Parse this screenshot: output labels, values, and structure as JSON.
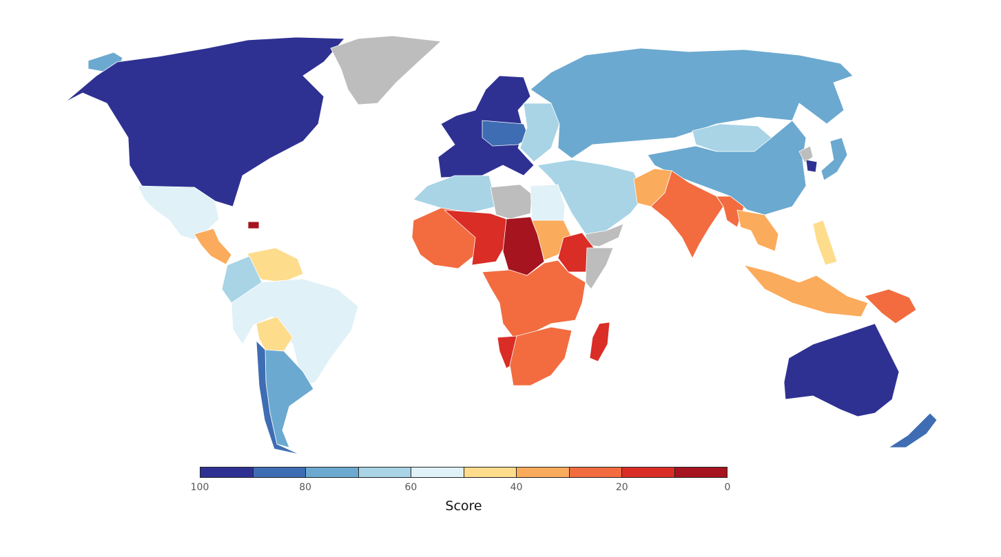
{
  "legend": {
    "title": "Score",
    "ticks": [
      "100",
      "80",
      "60",
      "40",
      "20",
      "0"
    ],
    "colors": [
      "#2e3192",
      "#3f6db3",
      "#6ba9d0",
      "#a8d4e6",
      "#e0f1f7",
      "#fddc8c",
      "#fbab5c",
      "#f26c40",
      "#d92d26",
      "#a5141f"
    ],
    "no_data_color": "#bdbdbd"
  },
  "regions": [
    {
      "name": "North America (USA, Canada)",
      "score_band": 0
    },
    {
      "name": "Alaska",
      "score_band": 2
    },
    {
      "name": "Greenland",
      "score_band": "no-data"
    },
    {
      "name": "Mexico",
      "score_band": 4
    },
    {
      "name": "Central America",
      "score_band": 6
    },
    {
      "name": "Haiti",
      "score_band": 9
    },
    {
      "name": "Northern South America",
      "score_band": 5
    },
    {
      "name": "Colombia / Ecuador",
      "score_band": 3
    },
    {
      "name": "Brazil / Peru",
      "score_band": 4
    },
    {
      "name": "Bolivia",
      "score_band": 5
    },
    {
      "name": "Argentina",
      "score_band": 2
    },
    {
      "name": "Chile",
      "score_band": 1
    },
    {
      "name": "Western Europe",
      "score_band": 0
    },
    {
      "name": "Central Europe",
      "score_band": 1
    },
    {
      "name": "Eastern Europe",
      "score_band": 3
    },
    {
      "name": "Russia",
      "score_band": 2
    },
    {
      "name": "China",
      "score_band": 2
    },
    {
      "name": "Mongolia",
      "score_band": 3
    },
    {
      "name": "Japan",
      "score_band": 2
    },
    {
      "name": "South Korea",
      "score_band": 0
    },
    {
      "name": "North Korea",
      "score_band": "no-data"
    },
    {
      "name": "Middle East",
      "score_band": 3
    },
    {
      "name": "Yemen / Oman",
      "score_band": "no-data"
    },
    {
      "name": "North Africa",
      "score_band": 3
    },
    {
      "name": "Libya",
      "score_band": "no-data"
    },
    {
      "name": "Egypt",
      "score_band": 4
    },
    {
      "name": "West Africa",
      "score_band": 7
    },
    {
      "name": "Sahel (Mali, Niger)",
      "score_band": 8
    },
    {
      "name": "Chad / CAR",
      "score_band": 9
    },
    {
      "name": "Sudan",
      "score_band": 6
    },
    {
      "name": "Ethiopia",
      "score_band": 8
    },
    {
      "name": "Somalia",
      "score_band": "no-data"
    },
    {
      "name": "Central and East Africa",
      "score_band": 7
    },
    {
      "name": "Southern Africa",
      "score_band": 7
    },
    {
      "name": "Namibia / Zimbabwe",
      "score_band": 8
    },
    {
      "name": "Madagascar",
      "score_band": 8
    },
    {
      "name": "Afghanistan / Pakistan",
      "score_band": 6
    },
    {
      "name": "India",
      "score_band": 7
    },
    {
      "name": "Myanmar / Bangladesh",
      "score_band": 7
    },
    {
      "name": "Southeast Asia",
      "score_band": 6
    },
    {
      "name": "Philippines",
      "score_band": 5
    },
    {
      "name": "Indonesia",
      "score_band": 6
    },
    {
      "name": "Papua New Guinea",
      "score_band": 7
    },
    {
      "name": "Australia",
      "score_band": 0
    },
    {
      "name": "New Zealand",
      "score_band": 1
    }
  ]
}
